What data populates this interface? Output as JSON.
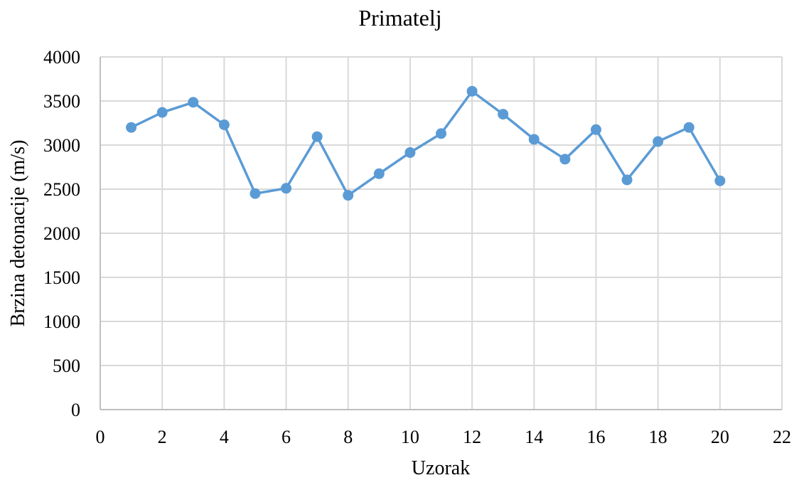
{
  "chart_data": {
    "type": "line",
    "title": "Primatelj",
    "xlabel": "Uzorak",
    "ylabel": "Brzina detonacije (m/s)",
    "xlim": [
      0,
      22
    ],
    "ylim": [
      0,
      4000
    ],
    "xticks": [
      0,
      2,
      4,
      6,
      8,
      10,
      12,
      14,
      16,
      18,
      20,
      22
    ],
    "yticks": [
      0,
      500,
      1000,
      1500,
      2000,
      2500,
      3000,
      3500,
      4000
    ],
    "grid": true,
    "legend": "none",
    "series": [
      {
        "color": "#5b9bd5",
        "x": [
          1,
          2,
          3,
          4,
          5,
          6,
          7,
          8,
          9,
          10,
          11,
          12,
          13,
          14,
          15,
          16,
          17,
          18,
          19,
          20
        ],
        "y": [
          3200,
          3370,
          3485,
          3230,
          2450,
          2510,
          3095,
          2430,
          2675,
          2915,
          3130,
          3610,
          3350,
          3065,
          2840,
          3175,
          2605,
          3040,
          3200,
          2595
        ]
      }
    ]
  }
}
